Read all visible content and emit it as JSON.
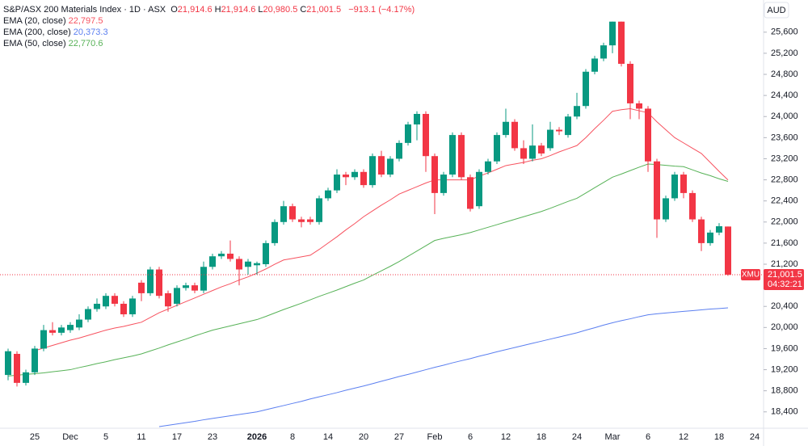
{
  "chart_data": {
    "type": "candlestick",
    "title": "S&P/ASX 200 Materials Index · 1D · ASX",
    "ohlc": [
      {
        "key": "O",
        "label": "21,914.6"
      },
      {
        "key": "H",
        "label": "21,914.6"
      },
      {
        "key": "L",
        "label": "20,980.5"
      },
      {
        "key": "C",
        "label": "21,001.5"
      }
    ],
    "change": "−913.1 (−4.17%)",
    "currency": "AUD",
    "symbol_tag": "XMU",
    "last_price_label": "21,001.5",
    "countdown": "04:32:21",
    "up_color": "#089981",
    "down_color": "#f23645",
    "grid": false,
    "categories": [
      null,
      null,
      null,
      "25",
      null,
      null,
      null,
      "Dec",
      null,
      null,
      null,
      "5",
      null,
      null,
      null,
      "11",
      null,
      null,
      null,
      "17",
      null,
      null,
      null,
      "23",
      null,
      null,
      null,
      null,
      "2026",
      null,
      null,
      null,
      "8",
      null,
      null,
      null,
      "14",
      null,
      null,
      null,
      "20",
      null,
      null,
      null,
      "27",
      null,
      null,
      null,
      "Feb",
      null,
      null,
      null,
      "6",
      null,
      null,
      null,
      "12",
      null,
      null,
      null,
      "18",
      null,
      null,
      null,
      "24",
      null,
      null,
      null,
      "Mar",
      null,
      null,
      null,
      "6",
      null,
      null,
      null,
      "12",
      null,
      null,
      null,
      "18",
      null,
      null,
      null,
      "24"
    ],
    "open": [
      19100,
      19500,
      18950,
      19150,
      19600,
      19950,
      19900,
      19950,
      20000,
      20150,
      20350,
      20400,
      20600,
      20450,
      20250,
      20850,
      20650,
      21100,
      20650,
      20450,
      20750,
      20800,
      20700,
      21150,
      21350,
      21400,
      21300,
      21150,
      21180,
      21200,
      21600,
      22000,
      22300,
      22050,
      22050,
      22000,
      22450,
      22600,
      22900,
      22850,
      22950,
      22700,
      23250,
      22900,
      23200,
      23500,
      23850,
      24050,
      23250,
      22550,
      22900,
      23650,
      22850,
      22300,
      22950,
      23150,
      23650,
      23900,
      23400,
      23200,
      23450,
      23400,
      23750,
      23650,
      24000,
      24200,
      24850,
      25100,
      25350,
      25800,
      25000,
      24250,
      24150,
      23150,
      22050,
      22450,
      22900,
      22550,
      22050,
      21600,
      21800,
      21914.6,
      null,
      null,
      null
    ],
    "high": [
      19600,
      19550,
      19200,
      19650,
      20050,
      20100,
      20050,
      20100,
      20250,
      20400,
      20550,
      20650,
      20650,
      20500,
      20600,
      20900,
      21150,
      21150,
      20700,
      20800,
      20850,
      20850,
      21250,
      21400,
      21450,
      21650,
      21350,
      21300,
      21250,
      21650,
      22050,
      22400,
      22350,
      22100,
      22100,
      22500,
      22650,
      23000,
      22950,
      23000,
      23000,
      23300,
      23350,
      23250,
      23550,
      23900,
      24100,
      24100,
      23300,
      22950,
      23700,
      23700,
      22900,
      23000,
      23200,
      23700,
      24150,
      23950,
      23550,
      23850,
      23500,
      23900,
      23800,
      24050,
      24450,
      24900,
      25150,
      25400,
      25800,
      25800,
      25050,
      24300,
      24200,
      23200,
      22500,
      22950,
      22950,
      22600,
      22100,
      21850,
      21980,
      21914.6,
      null,
      null,
      null
    ],
    "low": [
      19000,
      18880,
      18900,
      19100,
      19550,
      19850,
      19850,
      19900,
      19950,
      20100,
      20300,
      20350,
      20400,
      20200,
      20200,
      20500,
      20600,
      20550,
      20300,
      20400,
      20700,
      20650,
      20650,
      21100,
      21300,
      21250,
      20800,
      21000,
      21000,
      21150,
      21550,
      21950,
      22000,
      21900,
      21950,
      21950,
      22400,
      22550,
      22700,
      22800,
      22650,
      22650,
      22850,
      22850,
      23150,
      23450,
      23550,
      22950,
      22150,
      22500,
      22850,
      22800,
      22200,
      22250,
      22900,
      23100,
      23600,
      23350,
      23100,
      23150,
      23250,
      23350,
      23650,
      23600,
      23950,
      24150,
      24800,
      25050,
      25200,
      24950,
      23950,
      23950,
      22950,
      21700,
      22000,
      22400,
      22450,
      22000,
      21450,
      21550,
      21750,
      20980.5,
      null,
      null,
      null
    ],
    "close": [
      19550,
      18950,
      19150,
      19600,
      19950,
      19900,
      20000,
      20050,
      20150,
      20350,
      20450,
      20600,
      20450,
      20250,
      20550,
      20650,
      21100,
      20600,
      20400,
      20750,
      20800,
      20700,
      21150,
      21350,
      21400,
      21300,
      21100,
      21250,
      21220,
      21600,
      22000,
      22300,
      22050,
      22000,
      22000,
      22450,
      22600,
      22900,
      22850,
      22950,
      22700,
      23250,
      22900,
      23200,
      23500,
      23850,
      24050,
      23250,
      22550,
      22900,
      23650,
      22850,
      22250,
      22950,
      23150,
      23650,
      23900,
      23400,
      23200,
      23450,
      23300,
      23750,
      23720,
      24000,
      24200,
      24850,
      25100,
      25350,
      25800,
      25000,
      24250,
      24150,
      23150,
      22050,
      22450,
      22900,
      22550,
      22050,
      21600,
      21800,
      21920,
      21001.5,
      null,
      null,
      null
    ],
    "series": [
      {
        "name": "EMA (20, close)",
        "color": "#f7525f",
        "last_label": "22,797.5",
        "values": [
          null,
          null,
          null,
          19560,
          19610,
          19660,
          19710,
          19760,
          19800,
          19850,
          19900,
          19950,
          19990,
          20020,
          20060,
          20100,
          20190,
          20280,
          20350,
          20420,
          20490,
          20560,
          20630,
          20700,
          20770,
          20830,
          20900,
          20960,
          21030,
          21110,
          21200,
          21280,
          21310,
          21340,
          21370,
          21480,
          21600,
          21720,
          21850,
          21970,
          22100,
          22210,
          22320,
          22420,
          22530,
          22600,
          22670,
          22740,
          22800,
          22800,
          22800,
          22800,
          22800,
          22870,
          22930,
          23000,
          23070,
          23100,
          23130,
          23170,
          23200,
          23260,
          23330,
          23390,
          23450,
          23600,
          23770,
          23930,
          24100,
          24130,
          24150,
          24110,
          24070,
          23900,
          23750,
          23600,
          23500,
          23400,
          23300,
          23130,
          22960,
          22797.5,
          null,
          null,
          null
        ]
      },
      {
        "name": "EMA (200, close)",
        "color": "#5b7ff0",
        "last_label": "20,373.3",
        "values": [
          null,
          null,
          null,
          null,
          null,
          null,
          null,
          null,
          null,
          null,
          null,
          null,
          null,
          null,
          null,
          null,
          null,
          18120,
          18145,
          18170,
          18195,
          18220,
          18250,
          18275,
          18300,
          18325,
          18350,
          18375,
          18400,
          18440,
          18480,
          18520,
          18560,
          18600,
          18645,
          18685,
          18725,
          18765,
          18810,
          18850,
          18890,
          18935,
          18980,
          19025,
          19070,
          19110,
          19155,
          19200,
          19245,
          19285,
          19330,
          19370,
          19410,
          19455,
          19495,
          19540,
          19580,
          19620,
          19660,
          19700,
          19740,
          19780,
          19820,
          19860,
          19900,
          19950,
          19995,
          20045,
          20090,
          20130,
          20165,
          20205,
          20240,
          20260,
          20275,
          20290,
          20305,
          20320,
          20335,
          20350,
          20360,
          20373.3,
          null,
          null,
          null
        ]
      },
      {
        "name": "EMA (50, close)",
        "color": "#57b257",
        "last_label": "22,770.6",
        "values": [
          19080,
          19095,
          19110,
          19125,
          19140,
          19160,
          19180,
          19200,
          19240,
          19275,
          19315,
          19350,
          19390,
          19425,
          19460,
          19500,
          19555,
          19610,
          19670,
          19725,
          19780,
          19840,
          19895,
          19950,
          19990,
          20030,
          20070,
          20110,
          20150,
          20210,
          20275,
          20340,
          20400,
          20460,
          20525,
          20590,
          20650,
          20710,
          20775,
          20840,
          20900,
          20990,
          21075,
          21160,
          21250,
          21350,
          21450,
          21550,
          21650,
          21690,
          21725,
          21760,
          21800,
          21850,
          21900,
          21950,
          22000,
          22050,
          22100,
          22150,
          22200,
          22260,
          22325,
          22390,
          22450,
          22550,
          22650,
          22750,
          22850,
          22910,
          22975,
          23040,
          23100,
          23090,
          23075,
          23060,
          23050,
          22990,
          22930,
          22880,
          22820,
          22770.6,
          null,
          null,
          null
        ]
      }
    ],
    "ylim": [
      18090,
      26210
    ],
    "yticks": [
      {
        "value": 18400,
        "label": "18,400"
      },
      {
        "value": 18800,
        "label": "18,800"
      },
      {
        "value": 19200,
        "label": "19,200"
      },
      {
        "value": 19600,
        "label": "19,600"
      },
      {
        "value": 20000,
        "label": "20,000"
      },
      {
        "value": 20400,
        "label": "20,400"
      },
      {
        "value": 20800,
        "label": "20,800"
      },
      {
        "value": 21200,
        "label": "21,200"
      },
      {
        "value": 21600,
        "label": "21,600"
      },
      {
        "value": 22000,
        "label": "22,000"
      },
      {
        "value": 22400,
        "label": "22,400"
      },
      {
        "value": 22800,
        "label": "22,800"
      },
      {
        "value": 23200,
        "label": "23,200"
      },
      {
        "value": 23600,
        "label": "23,600"
      },
      {
        "value": 24000,
        "label": "24,000"
      },
      {
        "value": 24400,
        "label": "24,400"
      },
      {
        "value": 24800,
        "label": "24,800"
      },
      {
        "value": 25200,
        "label": "25,200"
      },
      {
        "value": 25600,
        "label": "25,600"
      }
    ]
  }
}
